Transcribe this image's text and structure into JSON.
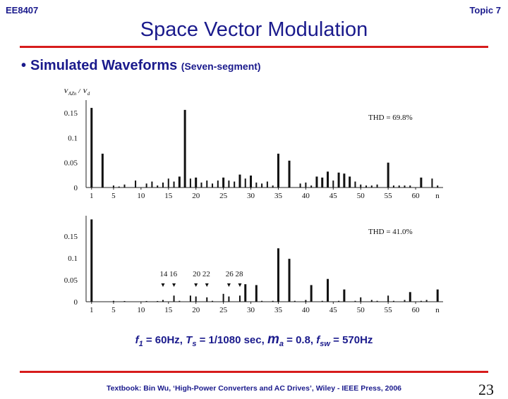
{
  "header": {
    "course": "EE8407",
    "topic": "Topic 7",
    "title": "Space Vector Modulation"
  },
  "bullet": {
    "main": "Simulated Waveforms",
    "sub": "(Seven-segment)"
  },
  "params": {
    "f1_sym": "f",
    "f1_sub": "1",
    "f1_val": " = 60Hz, ",
    "ts_sym": "T",
    "ts_sub": "s",
    "ts_val": " = 1/1080 sec, ",
    "ma_sym": "m",
    "ma_sub": "a",
    "ma_val": " = 0.8,  ",
    "fsw_sym": "f",
    "fsw_sub": "sw",
    "fsw_val": " = 570Hz"
  },
  "footer": {
    "textbook": "Textbook: Bin Wu, ‘High-Power Converters and AC Drives’, Wiley - IEEE Press, 2006",
    "page": "23"
  },
  "chart_data": [
    {
      "type": "bar",
      "ylabel": "V_AZn / V_d",
      "xlabel": "n",
      "xlim": [
        0,
        65
      ],
      "ylim": [
        0,
        0.17
      ],
      "yticks": [
        0,
        0.05,
        0.1,
        0.15
      ],
      "xticks": [
        1,
        5,
        10,
        15,
        20,
        25,
        30,
        35,
        40,
        45,
        50,
        55,
        60
      ],
      "thd": "THD = 69.8%",
      "x": [
        1,
        3,
        5,
        6,
        7,
        9,
        11,
        12,
        13,
        14,
        15,
        16,
        17,
        18,
        19,
        20,
        21,
        22,
        23,
        24,
        25,
        26,
        27,
        28,
        29,
        30,
        31,
        32,
        33,
        34,
        35,
        37,
        39,
        40,
        41,
        42,
        43,
        44,
        45,
        46,
        47,
        48,
        49,
        50,
        51,
        52,
        53,
        55,
        56,
        57,
        58,
        59,
        61,
        63,
        64
      ],
      "y": [
        0.16,
        0.068,
        0.004,
        0.002,
        0.006,
        0.014,
        0.008,
        0.012,
        0.004,
        0.01,
        0.018,
        0.012,
        0.022,
        0.156,
        0.018,
        0.02,
        0.01,
        0.014,
        0.008,
        0.014,
        0.02,
        0.014,
        0.012,
        0.026,
        0.018,
        0.024,
        0.01,
        0.008,
        0.012,
        0.004,
        0.068,
        0.054,
        0.008,
        0.01,
        0.004,
        0.022,
        0.02,
        0.032,
        0.014,
        0.03,
        0.028,
        0.022,
        0.012,
        0.006,
        0.004,
        0.004,
        0.006,
        0.05,
        0.004,
        0.004,
        0.004,
        0.004,
        0.02,
        0.018,
        0.004
      ]
    },
    {
      "type": "bar",
      "xlabel": "n",
      "xlim": [
        0,
        65
      ],
      "ylim": [
        0,
        0.19
      ],
      "yticks": [
        0,
        0.05,
        0.1,
        0.15
      ],
      "xticks": [
        1,
        5,
        10,
        15,
        20,
        25,
        30,
        35,
        40,
        45,
        50,
        55,
        60
      ],
      "thd": "THD = 41.0%",
      "annotations": [
        "14 16",
        "20 22",
        "26 28"
      ],
      "annotation_x": [
        15,
        21,
        27
      ],
      "arrow_x": [
        14,
        16,
        20,
        22,
        26,
        28
      ],
      "x": [
        1,
        5,
        7,
        11,
        13,
        14,
        16,
        17,
        19,
        20,
        22,
        23,
        25,
        26,
        28,
        29,
        31,
        32,
        34,
        35,
        37,
        38,
        40,
        41,
        43,
        44,
        46,
        47,
        49,
        50,
        52,
        53,
        55,
        56,
        58,
        59,
        61,
        62,
        64
      ],
      "y": [
        0.188,
        0.002,
        0.001,
        0.001,
        0.001,
        0.004,
        0.014,
        0.002,
        0.014,
        0.012,
        0.01,
        0.002,
        0.018,
        0.012,
        0.014,
        0.04,
        0.038,
        0.002,
        0.002,
        0.122,
        0.098,
        0.002,
        0.004,
        0.038,
        0.002,
        0.052,
        0.002,
        0.028,
        0.002,
        0.01,
        0.004,
        0.002,
        0.014,
        0.002,
        0.004,
        0.022,
        0.002,
        0.004,
        0.028
      ]
    }
  ]
}
